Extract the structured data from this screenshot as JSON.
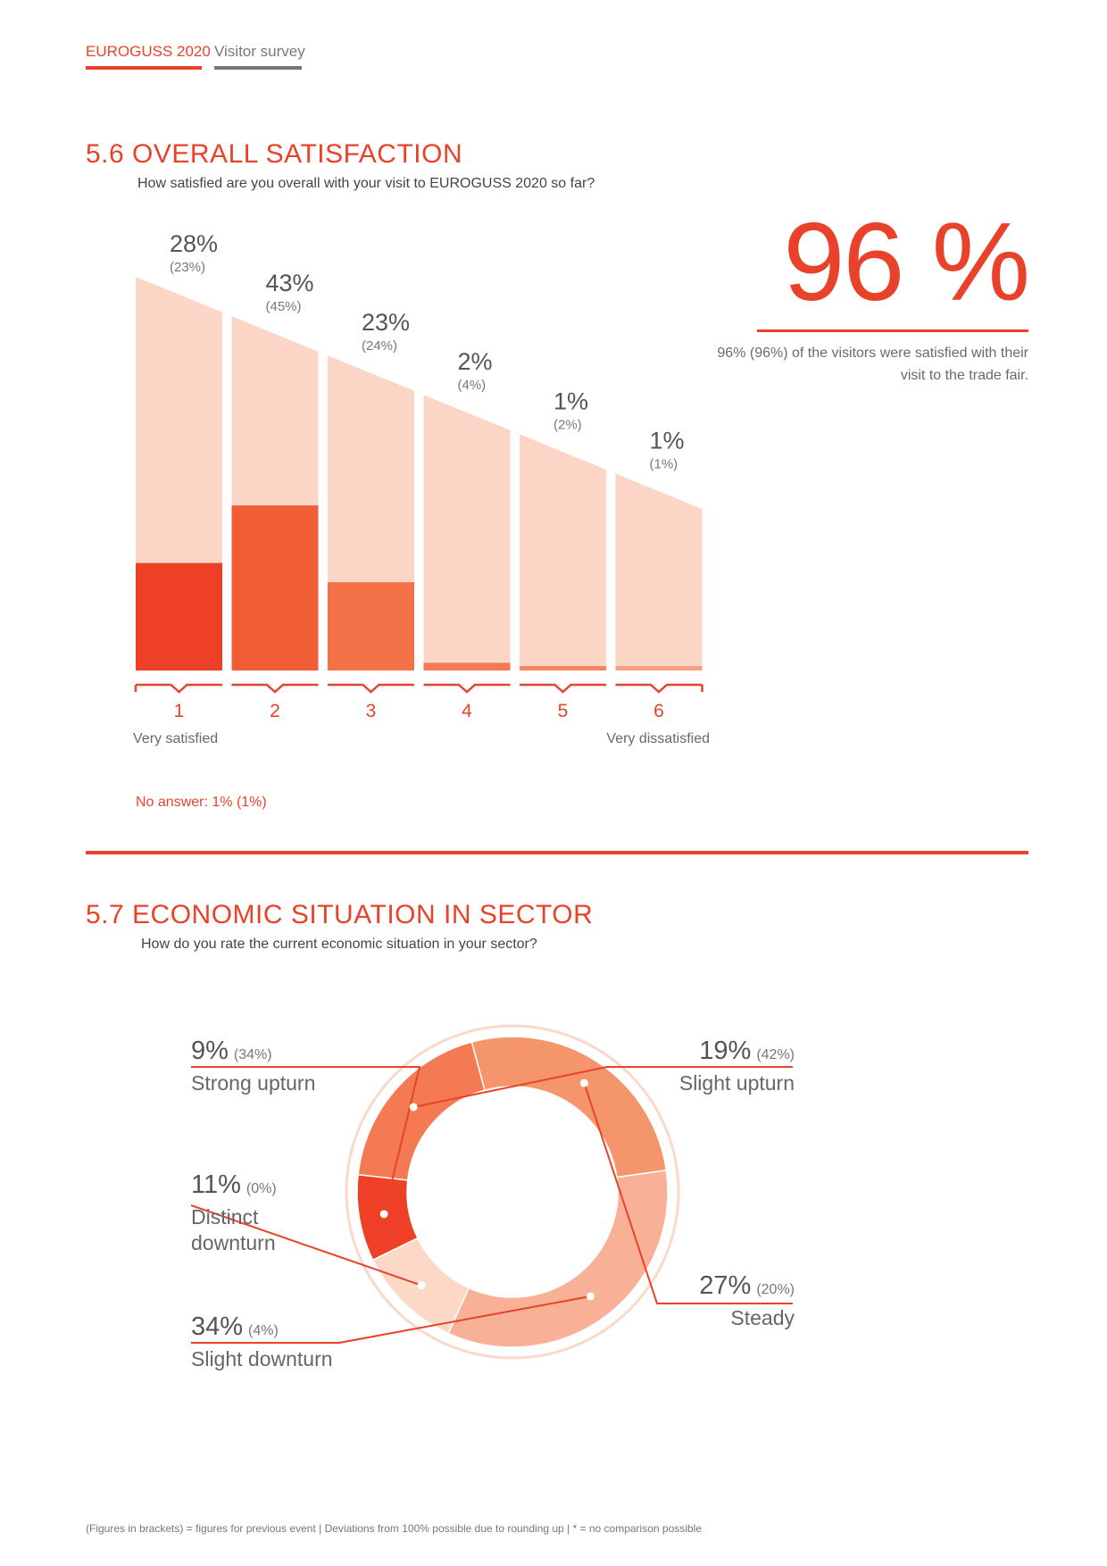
{
  "header": {
    "brand": "EUROGUSS 2020",
    "section": "Visitor survey"
  },
  "section1": {
    "title": "5.6  OVERALL SATISFACTION",
    "subtitle": "How satisfied are you overall with your visit to EUROGUSS 2020 so far?",
    "highlight": "96 %",
    "highlight_note": "96% (96%) of the visitors were satisfied with their visit to the trade fair.",
    "no_answer": "No answer: 1% (1%)",
    "axis_left": "Very satisfied",
    "axis_right": "Very dissatisfied"
  },
  "section2": {
    "title": "5.7  ECONOMIC SITUATION IN SECTOR",
    "subtitle": "How do you rate the current economic situation in your sector?"
  },
  "footer": "(Figures in brackets) = figures for previous event | Deviations from 100% possible due to rounding up | * = no comparison possible",
  "colors": {
    "accent": "#e8432a",
    "bar_bg": "#fbd5c5",
    "bar_shades": [
      "#ee4026",
      "#f15e36",
      "#f37248",
      "#f37a52",
      "#f48762",
      "#f7a085"
    ],
    "donut_shades": [
      "#ee4026",
      "#f37a52",
      "#f5956c",
      "#f8b197",
      "#fcd8c7"
    ]
  },
  "chart_data": [
    {
      "type": "bar",
      "categories": [
        "1",
        "2",
        "3",
        "4",
        "5",
        "6"
      ],
      "series": [
        {
          "values": [
            28,
            43,
            23,
            2,
            1,
            1
          ]
        },
        {
          "values": [
            23,
            45,
            24,
            4,
            2,
            1
          ]
        }
      ],
      "value_labels": [
        "28%",
        "43%",
        "23%",
        "2%",
        "1%",
        "1%"
      ],
      "previous_labels": [
        "(23%)",
        "(45%)",
        "(24%)",
        "(4%)",
        "(2%)",
        "(1%)"
      ]
    },
    {
      "type": "pie",
      "categories": [
        "Strong upturn",
        "Slight upturn",
        "Steady",
        "Slight downturn",
        "Distinct downturn"
      ],
      "values": [
        9,
        19,
        27,
        34,
        11
      ],
      "previous_values": [
        34,
        42,
        20,
        4,
        0
      ],
      "value_labels": [
        "9%",
        "19%",
        "27%",
        "34%",
        "11%"
      ],
      "previous_labels": [
        "(34%)",
        "(42%)",
        "(20%)",
        "(4%)",
        "(0%)"
      ]
    }
  ]
}
